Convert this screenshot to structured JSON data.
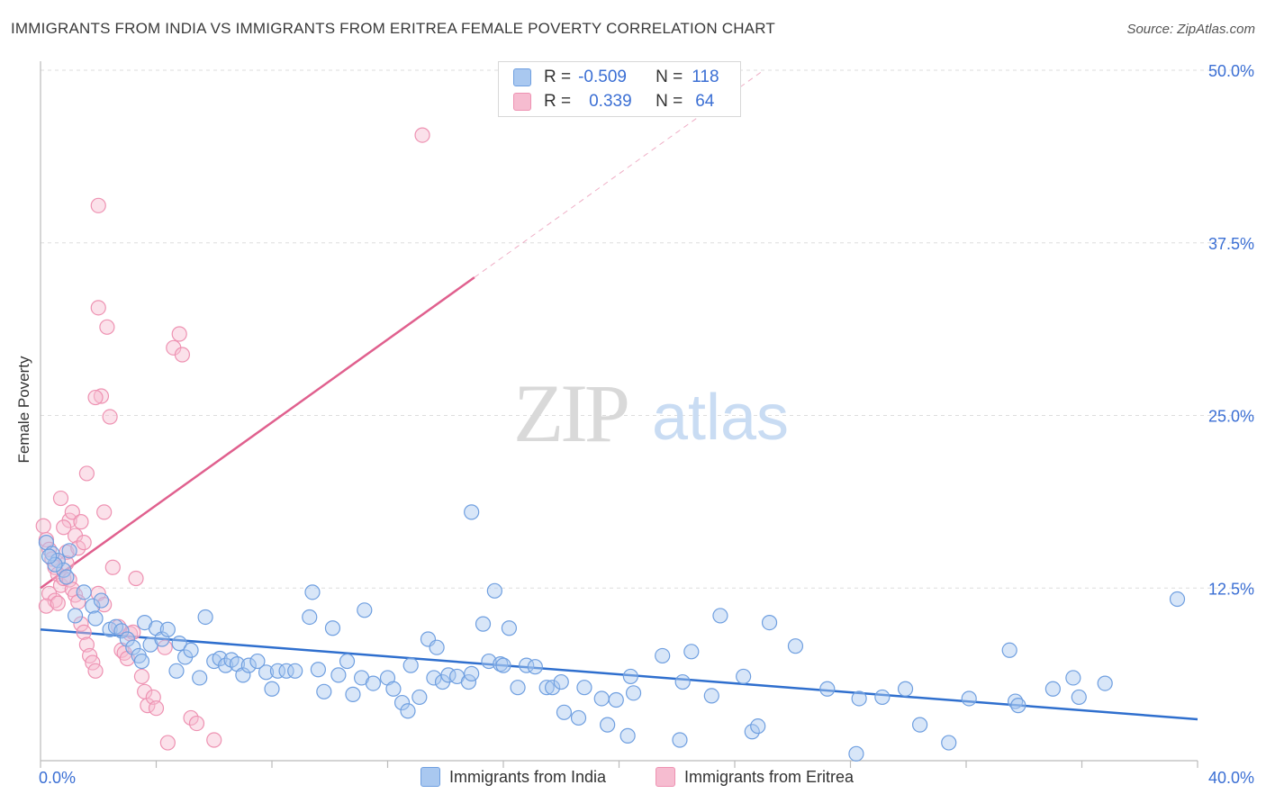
{
  "title": "IMMIGRANTS FROM INDIA VS IMMIGRANTS FROM ERITREA FEMALE POVERTY CORRELATION CHART",
  "source": "Source: ZipAtlas.com",
  "watermark": {
    "zip": "ZIP",
    "atlas": "atlas"
  },
  "legend_top": [
    {
      "r_label": "R =",
      "r_value": "-0.509",
      "n_label": "N =",
      "n_value": "118"
    },
    {
      "r_label": "R =",
      "r_value": "0.339",
      "n_label": "N =",
      "n_value": "64"
    }
  ],
  "legend_bottom": [
    {
      "label": "Immigrants from India"
    },
    {
      "label": "Immigrants from Eritrea"
    }
  ],
  "colors": {
    "india_fill": "#a9c8f0",
    "india_stroke": "#6f9fe0",
    "india_line": "#2f6fce",
    "eritrea_fill": "#f6bcd0",
    "eritrea_stroke": "#ee92b2",
    "eritrea_line": "#e0608e",
    "axis_value": "#3b6fd4",
    "grid": "#dddddd"
  },
  "chart_data": {
    "type": "scatter",
    "title": "IMMIGRANTS FROM INDIA VS IMMIGRANTS FROM ERITREA FEMALE POVERTY CORRELATION CHART",
    "xlabel": "",
    "ylabel": "Female Poverty",
    "xlim": [
      0,
      40
    ],
    "ylim": [
      0,
      50
    ],
    "x_tick_labels": [
      "0.0%",
      "40.0%"
    ],
    "y_ticks": [
      12.5,
      25.0,
      37.5,
      50.0
    ],
    "y_tick_labels": [
      "12.5%",
      "25.0%",
      "37.5%",
      "50.0%"
    ],
    "grid": true,
    "legend_position": "top-center",
    "series": [
      {
        "name": "Immigrants from India",
        "r": -0.509,
        "n": 118,
        "trend": {
          "x": [
            0,
            40
          ],
          "y": [
            9.5,
            3.0
          ],
          "style": "solid"
        },
        "points": [
          [
            0.2,
            15.8
          ],
          [
            0.4,
            15.0
          ],
          [
            0.6,
            14.5
          ],
          [
            0.8,
            13.8
          ],
          [
            1.0,
            15.2
          ],
          [
            0.5,
            14.2
          ],
          [
            0.9,
            13.3
          ],
          [
            0.3,
            14.8
          ],
          [
            1.5,
            12.2
          ],
          [
            1.2,
            10.5
          ],
          [
            1.8,
            11.2
          ],
          [
            2.1,
            11.6
          ],
          [
            1.9,
            10.3
          ],
          [
            2.4,
            9.5
          ],
          [
            2.6,
            9.7
          ],
          [
            2.8,
            9.4
          ],
          [
            3.0,
            8.8
          ],
          [
            3.2,
            8.2
          ],
          [
            3.4,
            7.6
          ],
          [
            3.5,
            7.2
          ],
          [
            3.6,
            10.0
          ],
          [
            3.8,
            8.4
          ],
          [
            4.0,
            9.6
          ],
          [
            4.2,
            8.8
          ],
          [
            4.4,
            9.5
          ],
          [
            4.7,
            6.5
          ],
          [
            4.8,
            8.5
          ],
          [
            5.0,
            7.5
          ],
          [
            5.2,
            8.0
          ],
          [
            5.5,
            6.0
          ],
          [
            5.7,
            10.4
          ],
          [
            6.0,
            7.2
          ],
          [
            6.2,
            7.4
          ],
          [
            6.4,
            6.9
          ],
          [
            6.6,
            7.3
          ],
          [
            6.8,
            7.0
          ],
          [
            7.0,
            6.2
          ],
          [
            7.2,
            6.9
          ],
          [
            7.5,
            7.2
          ],
          [
            7.8,
            6.4
          ],
          [
            8.0,
            5.2
          ],
          [
            8.2,
            6.5
          ],
          [
            8.5,
            6.5
          ],
          [
            8.8,
            6.5
          ],
          [
            9.3,
            10.4
          ],
          [
            9.4,
            12.2
          ],
          [
            9.6,
            6.6
          ],
          [
            9.8,
            5.0
          ],
          [
            10.1,
            9.6
          ],
          [
            10.3,
            6.2
          ],
          [
            10.6,
            7.2
          ],
          [
            10.8,
            4.8
          ],
          [
            11.1,
            6.0
          ],
          [
            11.2,
            10.9
          ],
          [
            11.5,
            5.6
          ],
          [
            12.0,
            6.0
          ],
          [
            12.2,
            5.2
          ],
          [
            12.5,
            4.2
          ],
          [
            12.7,
            3.6
          ],
          [
            12.8,
            6.9
          ],
          [
            13.1,
            4.6
          ],
          [
            13.4,
            8.8
          ],
          [
            13.6,
            6.0
          ],
          [
            13.7,
            8.2
          ],
          [
            13.9,
            5.7
          ],
          [
            14.1,
            6.2
          ],
          [
            14.4,
            6.1
          ],
          [
            14.8,
            5.7
          ],
          [
            14.9,
            6.3
          ],
          [
            14.9,
            18.0
          ],
          [
            15.3,
            9.9
          ],
          [
            15.5,
            7.2
          ],
          [
            15.7,
            12.3
          ],
          [
            15.9,
            7.0
          ],
          [
            16.0,
            6.9
          ],
          [
            16.2,
            9.6
          ],
          [
            16.5,
            5.3
          ],
          [
            16.8,
            6.9
          ],
          [
            17.1,
            6.8
          ],
          [
            17.5,
            5.3
          ],
          [
            17.7,
            5.3
          ],
          [
            18.0,
            5.7
          ],
          [
            18.1,
            3.5
          ],
          [
            18.6,
            3.1
          ],
          [
            18.8,
            5.3
          ],
          [
            19.4,
            4.5
          ],
          [
            19.6,
            2.6
          ],
          [
            19.9,
            4.4
          ],
          [
            20.3,
            1.8
          ],
          [
            20.4,
            6.1
          ],
          [
            20.5,
            4.9
          ],
          [
            21.5,
            7.6
          ],
          [
            22.1,
            1.5
          ],
          [
            22.2,
            5.7
          ],
          [
            22.5,
            7.9
          ],
          [
            23.2,
            4.7
          ],
          [
            23.5,
            10.5
          ],
          [
            24.3,
            6.1
          ],
          [
            24.6,
            2.1
          ],
          [
            24.8,
            2.5
          ],
          [
            25.2,
            10.0
          ],
          [
            26.1,
            8.3
          ],
          [
            27.2,
            5.2
          ],
          [
            28.2,
            0.5
          ],
          [
            28.3,
            4.5
          ],
          [
            29.1,
            4.6
          ],
          [
            29.9,
            5.2
          ],
          [
            30.4,
            2.6
          ],
          [
            31.4,
            1.3
          ],
          [
            32.1,
            4.5
          ],
          [
            33.5,
            8.0
          ],
          [
            33.7,
            4.3
          ],
          [
            33.8,
            4.0
          ],
          [
            35.0,
            5.2
          ],
          [
            35.7,
            6.0
          ],
          [
            35.9,
            4.6
          ],
          [
            36.8,
            5.6
          ],
          [
            39.3,
            11.7
          ]
        ]
      },
      {
        "name": "Immigrants from Eritrea",
        "r": 0.339,
        "n": 64,
        "trend": {
          "x": [
            0,
            15
          ],
          "y": [
            12.5,
            35.0
          ],
          "style": "solid",
          "extended_to": [
            25,
            50
          ],
          "extended_style": "dashed"
        },
        "points": [
          [
            0.1,
            17.0
          ],
          [
            0.2,
            16.0
          ],
          [
            0.3,
            15.3
          ],
          [
            0.4,
            14.6
          ],
          [
            0.5,
            14.0
          ],
          [
            0.6,
            13.5
          ],
          [
            0.7,
            12.7
          ],
          [
            0.8,
            13.2
          ],
          [
            0.3,
            12.1
          ],
          [
            0.5,
            11.6
          ],
          [
            0.2,
            11.2
          ],
          [
            0.6,
            11.4
          ],
          [
            0.9,
            15.1
          ],
          [
            1.0,
            17.4
          ],
          [
            0.8,
            16.9
          ],
          [
            1.1,
            18.0
          ],
          [
            0.7,
            19.0
          ],
          [
            1.2,
            16.3
          ],
          [
            1.3,
            15.4
          ],
          [
            1.4,
            17.3
          ],
          [
            1.5,
            15.8
          ],
          [
            0.9,
            14.3
          ],
          [
            1.0,
            13.1
          ],
          [
            1.1,
            12.4
          ],
          [
            1.2,
            12.0
          ],
          [
            1.3,
            11.5
          ],
          [
            1.4,
            9.9
          ],
          [
            1.5,
            9.3
          ],
          [
            1.6,
            8.4
          ],
          [
            1.7,
            7.6
          ],
          [
            1.8,
            7.1
          ],
          [
            1.9,
            6.5
          ],
          [
            2.0,
            12.1
          ],
          [
            2.2,
            11.3
          ],
          [
            1.6,
            20.8
          ],
          [
            2.0,
            40.2
          ],
          [
            2.0,
            32.8
          ],
          [
            2.3,
            31.4
          ],
          [
            2.1,
            26.4
          ],
          [
            1.9,
            26.3
          ],
          [
            2.4,
            24.9
          ],
          [
            2.2,
            18.0
          ],
          [
            2.5,
            14.0
          ],
          [
            2.7,
            9.7
          ],
          [
            2.8,
            8.0
          ],
          [
            2.9,
            7.8
          ],
          [
            3.0,
            7.4
          ],
          [
            3.1,
            9.2
          ],
          [
            3.2,
            9.3
          ],
          [
            3.3,
            13.2
          ],
          [
            3.5,
            6.1
          ],
          [
            3.6,
            5.0
          ],
          [
            3.7,
            4.0
          ],
          [
            3.9,
            4.6
          ],
          [
            4.0,
            3.8
          ],
          [
            4.3,
            8.2
          ],
          [
            4.4,
            1.3
          ],
          [
            4.8,
            30.9
          ],
          [
            4.6,
            29.9
          ],
          [
            4.9,
            29.4
          ],
          [
            5.2,
            3.1
          ],
          [
            5.4,
            2.7
          ],
          [
            6.0,
            1.5
          ],
          [
            13.2,
            45.3
          ]
        ]
      }
    ]
  }
}
